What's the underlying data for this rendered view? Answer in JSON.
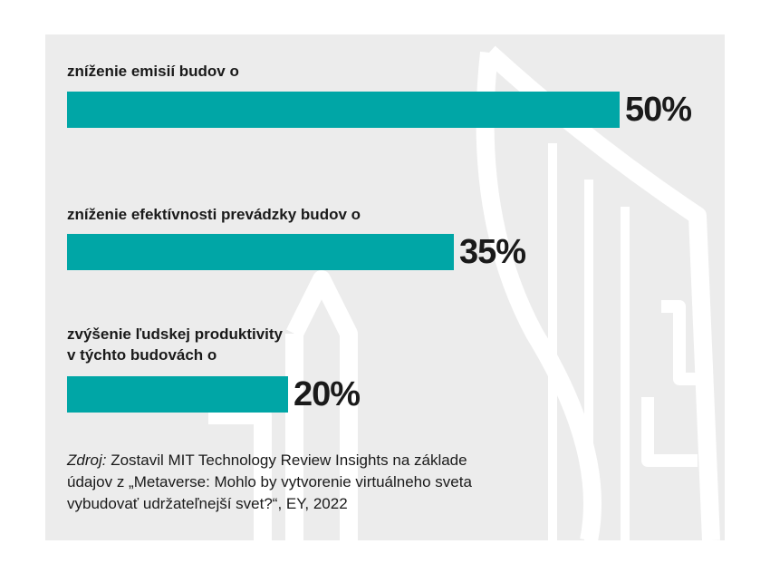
{
  "colors": {
    "bar": "#00a6a6",
    "background": "#ececec",
    "art": "#ffffff",
    "text": "#1a1a1a"
  },
  "chart_data": {
    "type": "bar",
    "orientation": "horizontal",
    "categories": [
      [
        "zníženie emisií budov o"
      ],
      [
        "zníženie efektívnosti prevádzky budov o"
      ],
      [
        "zvýšenie ľudskej produktivity",
        "v týchto budovách o"
      ]
    ],
    "values": [
      50,
      35,
      20
    ],
    "value_labels": [
      "50%",
      "35%",
      "20%"
    ],
    "xlim": [
      0,
      50
    ],
    "grid": false,
    "legend": "none"
  },
  "source": {
    "prefix": "Zdroj:",
    "lines": [
      " Zostavil MIT Technology Review Insights na základe",
      "údajov z „Metaverse: Mohlo by vytvorenie virtuálneho sveta",
      "vybudovať udržateľnejší svet?“, EY, 2022"
    ]
  }
}
